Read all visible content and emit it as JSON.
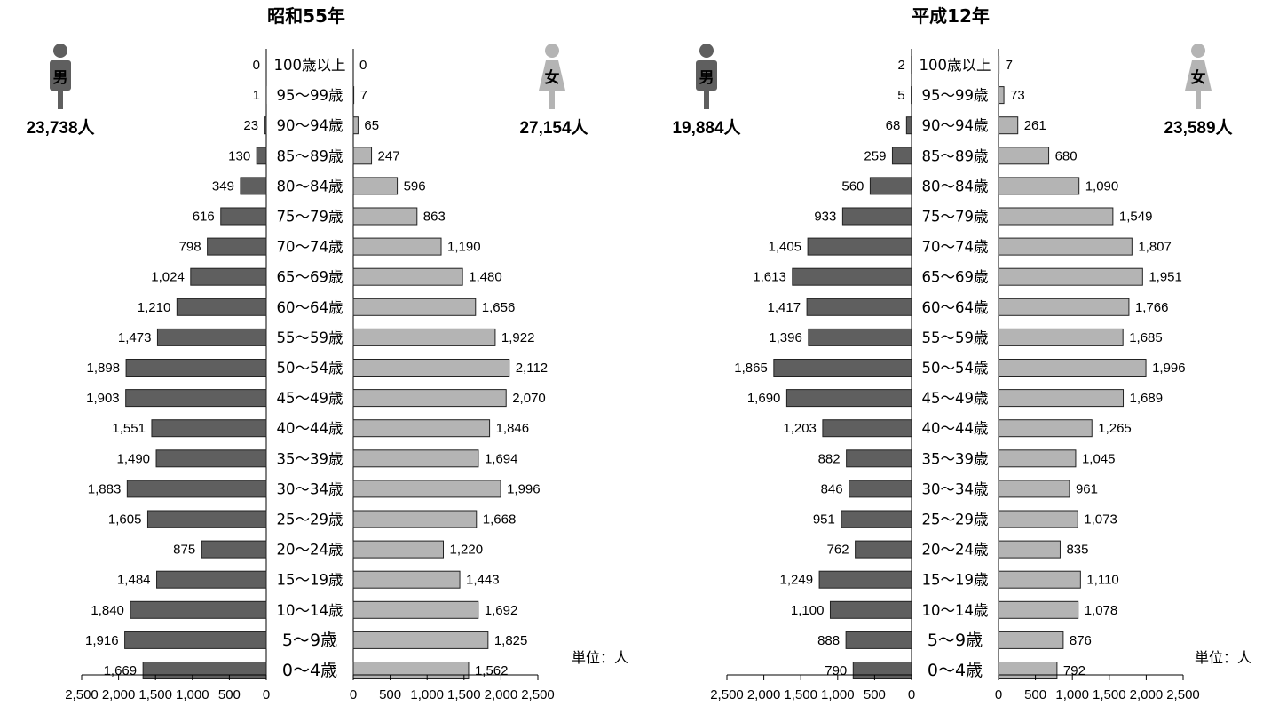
{
  "colors": {
    "male": "#5f5f5f",
    "female": "#b4b4b4",
    "stroke": "#222222"
  },
  "icons": {
    "male": "male-person-icon",
    "female": "female-person-icon"
  },
  "chart_data": [
    {
      "type": "bar",
      "title": "昭和55年",
      "categories": [
        "100歳以上",
        "95～99歳",
        "90～94歳",
        "85～89歳",
        "80～84歳",
        "75～79歳",
        "70～74歳",
        "65～69歳",
        "60～64歳",
        "55～59歳",
        "50～54歳",
        "45～49歳",
        "40～44歳",
        "35～39歳",
        "30～34歳",
        "25～29歳",
        "20～24歳",
        "15～19歳",
        "10～14歳",
        "5～9歳",
        "0～4歳"
      ],
      "series": [
        {
          "name": "男",
          "total": "23,738人",
          "values": [
            0,
            1,
            23,
            130,
            349,
            616,
            798,
            1024,
            1210,
            1473,
            1898,
            1903,
            1551,
            1490,
            1883,
            1605,
            875,
            1484,
            1840,
            1916,
            1669
          ],
          "labels": [
            "0",
            "1",
            "23",
            "130",
            "349",
            "616",
            "798",
            "1,024",
            "1,210",
            "1,473",
            "1,898",
            "1,903",
            "1,551",
            "1,490",
            "1,883",
            "1,605",
            "875",
            "1,484",
            "1,840",
            "1,916",
            "1,669"
          ]
        },
        {
          "name": "女",
          "total": "27,154人",
          "values": [
            0,
            7,
            65,
            247,
            596,
            863,
            1190,
            1480,
            1656,
            1922,
            2112,
            2070,
            1846,
            1694,
            1996,
            1668,
            1220,
            1443,
            1692,
            1825,
            1562
          ],
          "labels": [
            "0",
            "7",
            "65",
            "247",
            "596",
            "863",
            "1,190",
            "1,480",
            "1,656",
            "1,922",
            "2,112",
            "2,070",
            "1,846",
            "1,694",
            "1,996",
            "1,668",
            "1,220",
            "1,443",
            "1,692",
            "1,825",
            "1,562"
          ]
        }
      ],
      "xlim": [
        0,
        2500
      ],
      "ticks": [
        "0",
        "500",
        "1,000",
        "1,500",
        "2,000",
        "2,500"
      ],
      "unit_label": "単位：人"
    },
    {
      "type": "bar",
      "title": "平成12年",
      "categories": [
        "100歳以上",
        "95～99歳",
        "90～94歳",
        "85～89歳",
        "80～84歳",
        "75～79歳",
        "70～74歳",
        "65～69歳",
        "60～64歳",
        "55～59歳",
        "50～54歳",
        "45～49歳",
        "40～44歳",
        "35～39歳",
        "30～34歳",
        "25～29歳",
        "20～24歳",
        "15～19歳",
        "10～14歳",
        "5～9歳",
        "0～4歳"
      ],
      "series": [
        {
          "name": "男",
          "total": "19,884人",
          "values": [
            2,
            5,
            68,
            259,
            560,
            933,
            1405,
            1613,
            1417,
            1396,
            1865,
            1690,
            1203,
            882,
            846,
            951,
            762,
            1249,
            1100,
            888,
            790
          ],
          "labels": [
            "2",
            "5",
            "68",
            "259",
            "560",
            "933",
            "1,405",
            "1,613",
            "1,417",
            "1,396",
            "1,865",
            "1,690",
            "1,203",
            "882",
            "846",
            "951",
            "762",
            "1,249",
            "1,100",
            "888",
            "790"
          ]
        },
        {
          "name": "女",
          "total": "23,589人",
          "values": [
            7,
            73,
            261,
            680,
            1090,
            1549,
            1807,
            1951,
            1766,
            1685,
            1996,
            1689,
            1265,
            1045,
            961,
            1073,
            835,
            1110,
            1078,
            876,
            792
          ],
          "labels": [
            "7",
            "73",
            "261",
            "680",
            "1,090",
            "1,549",
            "1,807",
            "1,951",
            "1,766",
            "1,685",
            "1,996",
            "1,689",
            "1,265",
            "1,045",
            "961",
            "1,073",
            "835",
            "1,110",
            "1,078",
            "876",
            "792"
          ]
        }
      ],
      "xlim": [
        0,
        2500
      ],
      "ticks": [
        "0",
        "500",
        "1,000",
        "1,500",
        "2,000",
        "2,500"
      ],
      "unit_label": "単位：人"
    }
  ]
}
